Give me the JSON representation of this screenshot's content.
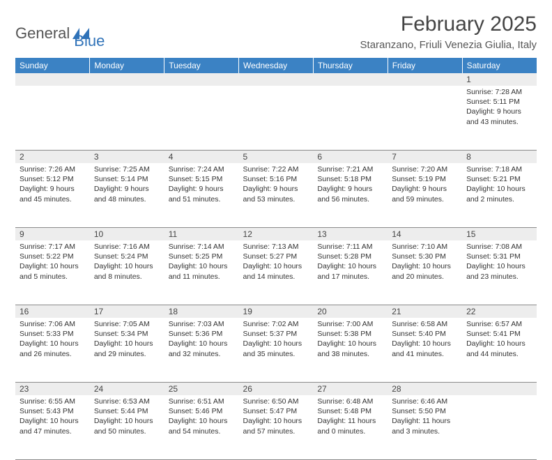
{
  "brand": {
    "word1": "General",
    "word2": "Blue"
  },
  "title": "February 2025",
  "location": "Staranzano, Friuli Venezia Giulia, Italy",
  "colors": {
    "header_bg": "#3b82c4",
    "header_fg": "#ffffff",
    "daynum_bg": "#ededed",
    "divider": "#8a8a8a",
    "text": "#333333",
    "logo_blue": "#2f72b8"
  },
  "typography": {
    "title_fontsize": 30,
    "location_fontsize": 15,
    "weekday_fontsize": 12,
    "daynum_fontsize": 12,
    "body_fontsize": 10.5
  },
  "calendar": {
    "type": "table",
    "columns": [
      "Sunday",
      "Monday",
      "Tuesday",
      "Wednesday",
      "Thursday",
      "Friday",
      "Saturday"
    ],
    "first_weekday_index": 6,
    "days": [
      {
        "n": 1,
        "sunrise": "7:28 AM",
        "sunset": "5:11 PM",
        "daylight": "9 hours and 43 minutes."
      },
      {
        "n": 2,
        "sunrise": "7:26 AM",
        "sunset": "5:12 PM",
        "daylight": "9 hours and 45 minutes."
      },
      {
        "n": 3,
        "sunrise": "7:25 AM",
        "sunset": "5:14 PM",
        "daylight": "9 hours and 48 minutes."
      },
      {
        "n": 4,
        "sunrise": "7:24 AM",
        "sunset": "5:15 PM",
        "daylight": "9 hours and 51 minutes."
      },
      {
        "n": 5,
        "sunrise": "7:22 AM",
        "sunset": "5:16 PM",
        "daylight": "9 hours and 53 minutes."
      },
      {
        "n": 6,
        "sunrise": "7:21 AM",
        "sunset": "5:18 PM",
        "daylight": "9 hours and 56 minutes."
      },
      {
        "n": 7,
        "sunrise": "7:20 AM",
        "sunset": "5:19 PM",
        "daylight": "9 hours and 59 minutes."
      },
      {
        "n": 8,
        "sunrise": "7:18 AM",
        "sunset": "5:21 PM",
        "daylight": "10 hours and 2 minutes."
      },
      {
        "n": 9,
        "sunrise": "7:17 AM",
        "sunset": "5:22 PM",
        "daylight": "10 hours and 5 minutes."
      },
      {
        "n": 10,
        "sunrise": "7:16 AM",
        "sunset": "5:24 PM",
        "daylight": "10 hours and 8 minutes."
      },
      {
        "n": 11,
        "sunrise": "7:14 AM",
        "sunset": "5:25 PM",
        "daylight": "10 hours and 11 minutes."
      },
      {
        "n": 12,
        "sunrise": "7:13 AM",
        "sunset": "5:27 PM",
        "daylight": "10 hours and 14 minutes."
      },
      {
        "n": 13,
        "sunrise": "7:11 AM",
        "sunset": "5:28 PM",
        "daylight": "10 hours and 17 minutes."
      },
      {
        "n": 14,
        "sunrise": "7:10 AM",
        "sunset": "5:30 PM",
        "daylight": "10 hours and 20 minutes."
      },
      {
        "n": 15,
        "sunrise": "7:08 AM",
        "sunset": "5:31 PM",
        "daylight": "10 hours and 23 minutes."
      },
      {
        "n": 16,
        "sunrise": "7:06 AM",
        "sunset": "5:33 PM",
        "daylight": "10 hours and 26 minutes."
      },
      {
        "n": 17,
        "sunrise": "7:05 AM",
        "sunset": "5:34 PM",
        "daylight": "10 hours and 29 minutes."
      },
      {
        "n": 18,
        "sunrise": "7:03 AM",
        "sunset": "5:36 PM",
        "daylight": "10 hours and 32 minutes."
      },
      {
        "n": 19,
        "sunrise": "7:02 AM",
        "sunset": "5:37 PM",
        "daylight": "10 hours and 35 minutes."
      },
      {
        "n": 20,
        "sunrise": "7:00 AM",
        "sunset": "5:38 PM",
        "daylight": "10 hours and 38 minutes."
      },
      {
        "n": 21,
        "sunrise": "6:58 AM",
        "sunset": "5:40 PM",
        "daylight": "10 hours and 41 minutes."
      },
      {
        "n": 22,
        "sunrise": "6:57 AM",
        "sunset": "5:41 PM",
        "daylight": "10 hours and 44 minutes."
      },
      {
        "n": 23,
        "sunrise": "6:55 AM",
        "sunset": "5:43 PM",
        "daylight": "10 hours and 47 minutes."
      },
      {
        "n": 24,
        "sunrise": "6:53 AM",
        "sunset": "5:44 PM",
        "daylight": "10 hours and 50 minutes."
      },
      {
        "n": 25,
        "sunrise": "6:51 AM",
        "sunset": "5:46 PM",
        "daylight": "10 hours and 54 minutes."
      },
      {
        "n": 26,
        "sunrise": "6:50 AM",
        "sunset": "5:47 PM",
        "daylight": "10 hours and 57 minutes."
      },
      {
        "n": 27,
        "sunrise": "6:48 AM",
        "sunset": "5:48 PM",
        "daylight": "11 hours and 0 minutes."
      },
      {
        "n": 28,
        "sunrise": "6:46 AM",
        "sunset": "5:50 PM",
        "daylight": "11 hours and 3 minutes."
      }
    ],
    "labels": {
      "sunrise": "Sunrise:",
      "sunset": "Sunset:",
      "daylight": "Daylight:"
    }
  }
}
